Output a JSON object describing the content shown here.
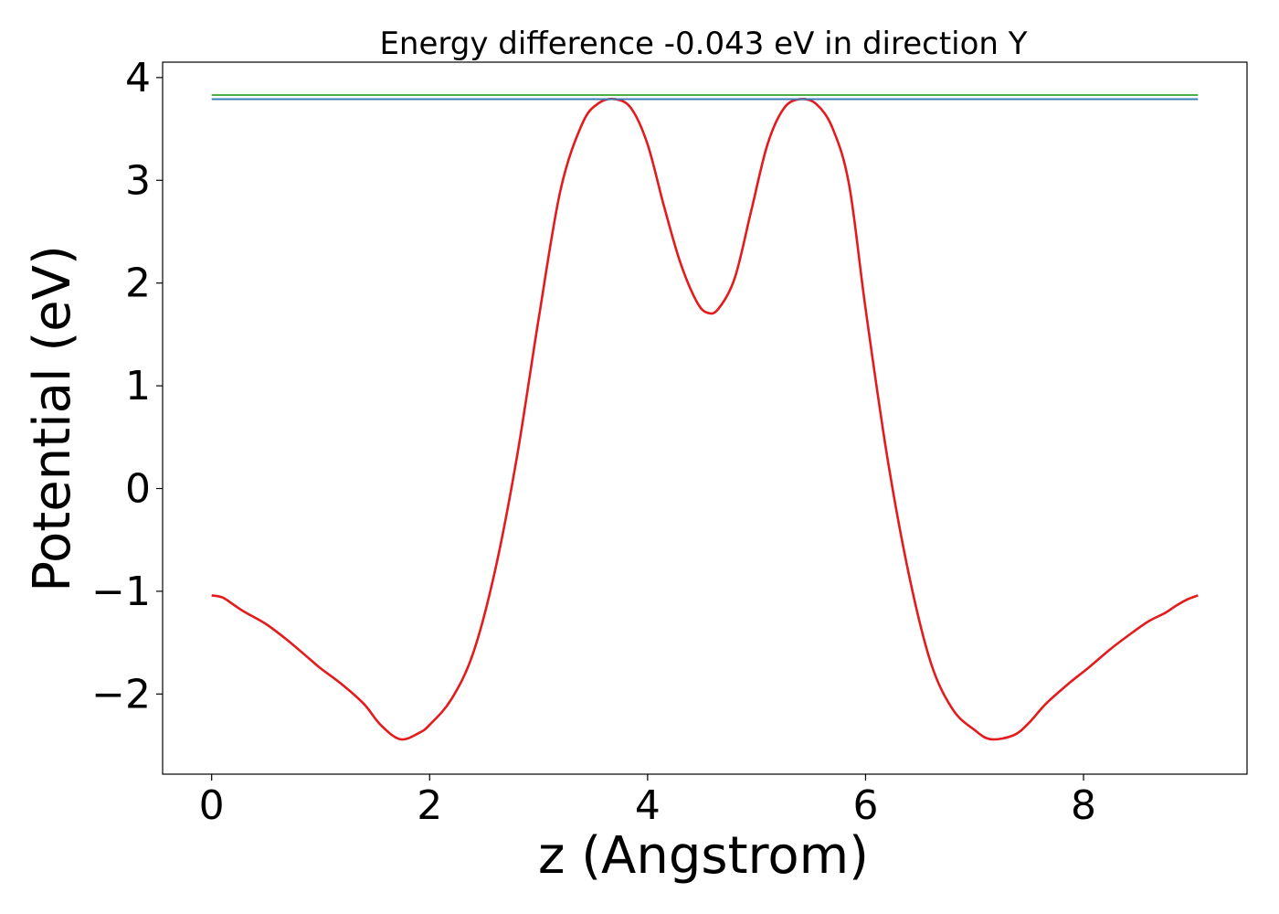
{
  "chart_data": {
    "type": "line",
    "title": "Energy difference -0.043 eV in direction Y",
    "xlabel": "z (Angstrom)",
    "ylabel": "Potential (eV)",
    "xlim": [
      -0.45,
      9.5
    ],
    "ylim": [
      -2.78,
      4.15
    ],
    "xticks": [
      0,
      2,
      4,
      6,
      8
    ],
    "xtick_labels": [
      "0",
      "2",
      "4",
      "6",
      "8"
    ],
    "yticks": [
      -2,
      -1,
      0,
      1,
      2,
      3,
      4
    ],
    "ytick_labels": [
      "−2",
      "−1",
      "0",
      "1",
      "2",
      "3",
      "4"
    ],
    "grid": false,
    "series": [
      {
        "color": "#e41a1c",
        "kind": "curve",
        "x": [
          0.0,
          0.1,
          0.2,
          0.3,
          0.5,
          0.7,
          0.9,
          1.0,
          1.2,
          1.4,
          1.55,
          1.73,
          1.9,
          2.0,
          2.2,
          2.4,
          2.6,
          2.8,
          3.0,
          3.2,
          3.4,
          3.55,
          3.7,
          3.85,
          4.0,
          4.15,
          4.3,
          4.45,
          4.55,
          4.65,
          4.8,
          4.95,
          5.1,
          5.25,
          5.4,
          5.55,
          5.7,
          5.85,
          6.0,
          6.2,
          6.4,
          6.6,
          6.8,
          7.0,
          7.15,
          7.36,
          7.5,
          7.65,
          7.85,
          8.05,
          8.25,
          8.45,
          8.6,
          8.75,
          8.85,
          8.95,
          9.05
        ],
        "y": [
          -1.04,
          -1.06,
          -1.13,
          -1.2,
          -1.32,
          -1.48,
          -1.66,
          -1.75,
          -1.91,
          -2.1,
          -2.3,
          -2.44,
          -2.38,
          -2.3,
          -2.05,
          -1.6,
          -0.8,
          0.3,
          1.65,
          2.9,
          3.55,
          3.75,
          3.79,
          3.7,
          3.35,
          2.75,
          2.2,
          1.82,
          1.71,
          1.75,
          2.05,
          2.7,
          3.35,
          3.7,
          3.79,
          3.74,
          3.5,
          2.95,
          1.75,
          0.3,
          -0.85,
          -1.7,
          -2.15,
          -2.35,
          -2.44,
          -2.4,
          -2.28,
          -2.1,
          -1.91,
          -1.74,
          -1.56,
          -1.4,
          -1.29,
          -1.21,
          -1.14,
          -1.08,
          -1.04
        ]
      },
      {
        "color": "#4daf4a",
        "kind": "hline",
        "x": [
          0.0,
          9.05
        ],
        "y": [
          3.83,
          3.83
        ]
      },
      {
        "color": "#377eb8",
        "kind": "hline",
        "x": [
          0.0,
          9.05
        ],
        "y": [
          3.79,
          3.79
        ]
      }
    ]
  }
}
